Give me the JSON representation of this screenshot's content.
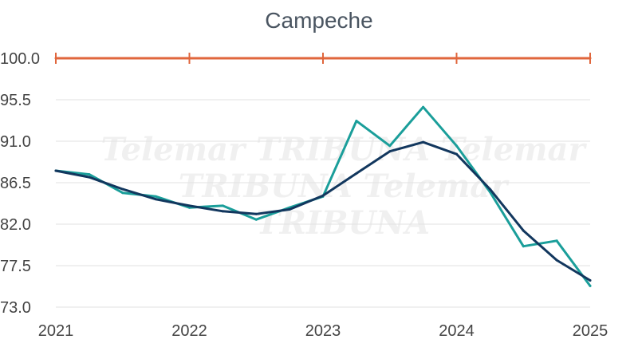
{
  "chart_data": {
    "type": "line",
    "title": "Campeche",
    "xlabel": "",
    "ylabel": "",
    "x_ticks": [
      "2021",
      "2022",
      "2023",
      "2024",
      "2025"
    ],
    "y_ticks": [
      "73.0",
      "77.5",
      "82.0",
      "86.5",
      "91.0",
      "95.5",
      "100.0"
    ],
    "xlim": [
      2021,
      2025
    ],
    "ylim": [
      73.0,
      100.0
    ],
    "grid": "horizontal",
    "legend": "none",
    "series": [
      {
        "color": "#1a9e9a",
        "x": [
          2021.0,
          2021.25,
          2021.5,
          2021.75,
          2022.0,
          2022.25,
          2022.5,
          2022.75,
          2023.0,
          2023.25,
          2023.5,
          2023.75,
          2024.0,
          2024.25,
          2024.5,
          2024.75,
          2025.0
        ],
        "y": [
          87.8,
          87.4,
          85.4,
          85.0,
          83.8,
          84.0,
          82.5,
          83.8,
          85.0,
          93.2,
          90.5,
          94.7,
          90.5,
          85.5,
          79.6,
          80.2,
          75.3
        ]
      },
      {
        "color": "#12375e",
        "x": [
          2021.0,
          2021.25,
          2021.5,
          2021.75,
          2022.0,
          2022.25,
          2022.5,
          2022.75,
          2023.0,
          2023.25,
          2023.5,
          2023.75,
          2024.0,
          2024.25,
          2024.5,
          2024.75,
          2025.0
        ],
        "y": [
          87.8,
          87.1,
          85.8,
          84.7,
          84.0,
          83.4,
          83.1,
          83.6,
          85.1,
          87.5,
          89.9,
          90.9,
          89.6,
          85.8,
          81.3,
          78.1,
          75.9
        ]
      },
      {
        "color": "#e0663c",
        "markers": "tick",
        "x": [
          2021.0,
          2022.0,
          2023.0,
          2024.0,
          2025.0
        ],
        "y": [
          100.0,
          100.0,
          100.0,
          100.0,
          100.0
        ]
      }
    ],
    "watermark": [
      "Telemar TRIBUNA Telemar",
      "TRIBUNA Telemar TRIBUNA"
    ]
  }
}
